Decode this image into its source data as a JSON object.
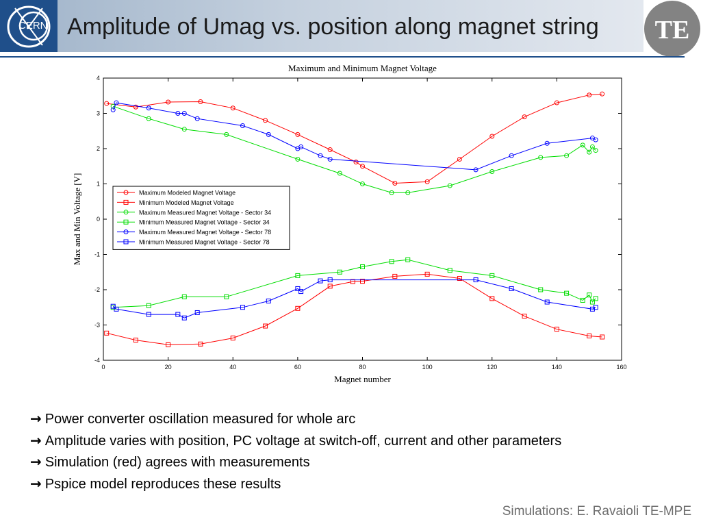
{
  "header": {
    "title": "Amplitude of Umag vs. position along magnet string",
    "left_logo_text": "CERN",
    "right_logo_text": "TE",
    "brand_color": "#1f4f8a"
  },
  "bullets": [
    {
      "arrow": "→",
      "text": "Power converter oscillation measured for whole arc"
    },
    {
      "arrow": "→",
      "text": "Amplitude varies with position, PC voltage at switch-off, current and other parameters"
    },
    {
      "arrow": "→",
      "text": "Simulation (red) agrees with measurements"
    },
    {
      "arrow": "→",
      "text": "Pspice model reproduces these results"
    }
  ],
  "footer": {
    "credit": "Simulations: E. Ravaioli TE-MPE"
  },
  "chart_data": {
    "type": "line",
    "title": "Maximum and Minimum Magnet Voltage",
    "xlabel": "Magnet number",
    "ylabel": "Max and Min Voltage [V]",
    "xlim": [
      0,
      160
    ],
    "ylim": [
      -4,
      4
    ],
    "xticks": [
      0,
      20,
      40,
      60,
      80,
      100,
      120,
      140,
      160
    ],
    "yticks": [
      -4,
      -3,
      -2,
      -1,
      0,
      1,
      2,
      3,
      4
    ],
    "legend_position": "center-left",
    "series": [
      {
        "name": "Maximum Modeled Magnet Voltage",
        "color": "#ff0000",
        "marker": "circle",
        "x": [
          1,
          10,
          20,
          30,
          40,
          50,
          60,
          70,
          78,
          80,
          90,
          100,
          110,
          120,
          130,
          140,
          150,
          154
        ],
        "y": [
          3.28,
          3.18,
          3.32,
          3.33,
          3.15,
          2.8,
          2.4,
          1.97,
          1.62,
          1.5,
          1.02,
          1.06,
          1.7,
          2.35,
          2.9,
          3.3,
          3.52,
          3.55
        ]
      },
      {
        "name": "Minimum Modeled Magnet Voltage",
        "color": "#ff0000",
        "marker": "square",
        "x": [
          1,
          10,
          20,
          30,
          40,
          50,
          60,
          70,
          77,
          80,
          90,
          100,
          110,
          120,
          130,
          140,
          150,
          154
        ],
        "y": [
          -3.23,
          -3.43,
          -3.56,
          -3.54,
          -3.37,
          -3.03,
          -2.53,
          -1.9,
          -1.77,
          -1.76,
          -1.62,
          -1.56,
          -1.68,
          -2.25,
          -2.75,
          -3.12,
          -3.31,
          -3.34
        ]
      },
      {
        "name": "Maximum Measured Magnet Voltage - Sector 34",
        "color": "#00dd00",
        "marker": "circle",
        "x": [
          3,
          14,
          25,
          38,
          60,
          73,
          80,
          89,
          94,
          107,
          120,
          135,
          143,
          148,
          150,
          151,
          152
        ],
        "y": [
          3.2,
          2.85,
          2.55,
          2.4,
          1.7,
          1.3,
          1.0,
          0.75,
          0.75,
          0.95,
          1.35,
          1.75,
          1.8,
          2.1,
          1.9,
          2.05,
          1.95
        ]
      },
      {
        "name": "Minimum Measured Magnet Voltage - Sector 34",
        "color": "#00dd00",
        "marker": "square",
        "x": [
          3,
          14,
          25,
          38,
          60,
          73,
          80,
          89,
          94,
          107,
          120,
          135,
          143,
          148,
          150,
          151,
          152
        ],
        "y": [
          -2.5,
          -2.45,
          -2.2,
          -2.2,
          -1.6,
          -1.5,
          -1.35,
          -1.2,
          -1.15,
          -1.45,
          -1.6,
          -2.0,
          -2.1,
          -2.3,
          -2.15,
          -2.35,
          -2.25
        ]
      },
      {
        "name": "Maximum Measured Magnet Voltage - Sector 78",
        "color": "#0000ff",
        "marker": "circle",
        "x": [
          3,
          4,
          14,
          23,
          25,
          29,
          43,
          51,
          60,
          61,
          67,
          70,
          115,
          126,
          137,
          151,
          152
        ],
        "y": [
          3.1,
          3.3,
          3.15,
          3.0,
          3.0,
          2.85,
          2.65,
          2.4,
          2.0,
          2.05,
          1.8,
          1.7,
          1.4,
          1.8,
          2.15,
          2.3,
          2.25
        ]
      },
      {
        "name": "Minimum Measured Magnet Voltage - Sector 78",
        "color": "#0000ff",
        "marker": "square",
        "x": [
          3,
          4,
          14,
          23,
          25,
          29,
          43,
          51,
          60,
          61,
          67,
          70,
          115,
          126,
          137,
          151,
          152
        ],
        "y": [
          -2.47,
          -2.55,
          -2.7,
          -2.7,
          -2.8,
          -2.65,
          -2.5,
          -2.32,
          -1.97,
          -2.05,
          -1.75,
          -1.72,
          -1.72,
          -1.97,
          -2.35,
          -2.55,
          -2.5
        ]
      }
    ]
  }
}
